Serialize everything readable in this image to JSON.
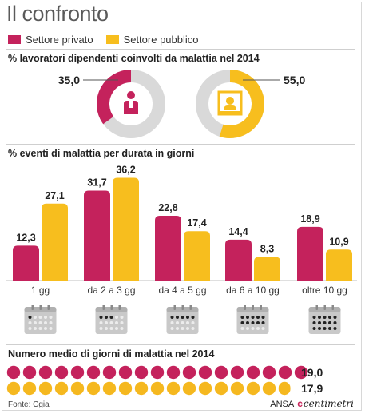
{
  "title": "Il confronto",
  "colors": {
    "private": "#c4225c",
    "public": "#f7be1e",
    "track": "#d9d9d9",
    "dot_public": "#f5b81f",
    "icon_gray": "#b3b3b3"
  },
  "legend": {
    "private": "Settore privato",
    "public": "Settore pubblico"
  },
  "section1": {
    "title": "% lavoratori dipendenti coinvolti da malattia nel 2014",
    "private_label": "35,0",
    "public_label": "55,0",
    "private_icon": "worker-icon",
    "public_icon": "office-clerk-icon"
  },
  "section2": {
    "title": "% eventi di malattia per durata in giorni",
    "calendar_icon": "calendar-icon"
  },
  "section3": {
    "title": "Numero medio di giorni di malattia nel 2014",
    "private_label": "19,0",
    "public_label": "17,9"
  },
  "footer": {
    "source": "Fonte: Cgia",
    "brand_a": "ANSA",
    "brand_b": "centimetri"
  },
  "chart_data": [
    {
      "type": "pie",
      "title": "% lavoratori dipendenti coinvolti da malattia nel 2014",
      "series": [
        {
          "name": "Settore privato",
          "value": 35.0,
          "label": "35,0"
        },
        {
          "name": "Settore pubblico",
          "value": 55.0,
          "label": "55,0"
        }
      ]
    },
    {
      "type": "bar",
      "title": "% eventi di malattia per durata in giorni",
      "categories": [
        "1 gg",
        "da 2 a 3 gg",
        "da 4 a 5 gg",
        "da 6 a 10 gg",
        "oltre 10 gg"
      ],
      "series": [
        {
          "name": "Settore privato",
          "values": [
            12.3,
            31.7,
            22.8,
            14.4,
            18.9
          ],
          "labels": [
            "12,3",
            "31,7",
            "22,8",
            "14,4",
            "18,9"
          ]
        },
        {
          "name": "Settore pubblico",
          "values": [
            27.1,
            36.2,
            17.4,
            8.3,
            10.9
          ],
          "labels": [
            "27,1",
            "36,2",
            "17,4",
            "8,3",
            "10,9"
          ]
        }
      ],
      "calendar_dots": [
        1,
        3,
        5,
        10,
        15
      ]
    },
    {
      "type": "bar",
      "title": "Numero medio di giorni di malattia nel 2014",
      "series": [
        {
          "name": "Settore privato",
          "value": 19.0,
          "label": "19,0"
        },
        {
          "name": "Settore pubblico",
          "value": 17.9,
          "label": "17,9"
        }
      ]
    }
  ]
}
